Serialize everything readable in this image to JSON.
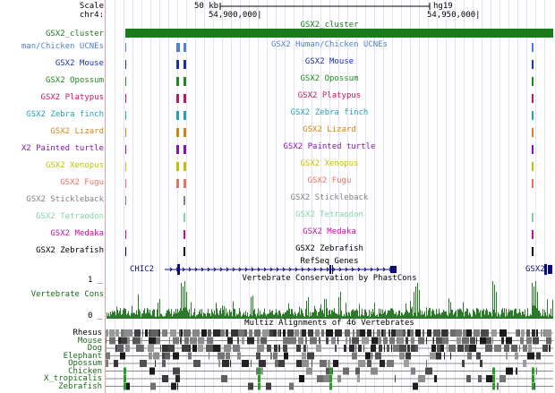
{
  "ruler": {
    "scale_label": "Scale",
    "chrom_label": "chr4:",
    "scale_text": "50 kb",
    "assembly": "hg19",
    "pos_left": "54,900,000|",
    "pos_right": "54,950,000|"
  },
  "tracks": [
    {
      "side": "GSX2_cluster",
      "center": "GSX2_cluster",
      "color": "#1b7b1b"
    },
    {
      "side": "man/Chicken UCNEs",
      "center": "GSX2 Human/Chicken UCNEs",
      "color": "#4f7fd6"
    },
    {
      "side": "GSX2 Mouse",
      "center": "GSX2 Mouse",
      "color": "#1a2fb0"
    },
    {
      "side": "GSX2 Opossum",
      "center": "GSX2 Opossum",
      "color": "#1d8a1d"
    },
    {
      "side": "GSX2 Platypus",
      "center": "GSX2 Platypus",
      "color": "#c01860"
    },
    {
      "side": "GSX2 Zebra finch",
      "center": "GSX2 Zebra finch",
      "color": "#1ea4b4"
    },
    {
      "side": "GSX2 Lizard",
      "center": "GSX2 Lizard",
      "color": "#d48410"
    },
    {
      "side": "X2 Painted turtle",
      "center": "GSX2 Painted turtle",
      "color": "#8a10c4"
    },
    {
      "side": "GSX2 Xenopus",
      "center": "GSX2 Xenopus",
      "color": "#c4c000"
    },
    {
      "side": "GSX2 Fugu",
      "center": "GSX2 Fugu",
      "color": "#ee7060"
    },
    {
      "side": "GSX2 Stickleback",
      "center": "GSX2 Stickleback",
      "color": "#808080"
    },
    {
      "side": "GSX2 Tetraodon",
      "center": "GSX2 Tetraodon",
      "color": "#80d4a4"
    },
    {
      "side": "GSX2 Medaka",
      "center": "GSX2 Medaka",
      "color": "#c010a0"
    },
    {
      "side": "GSX2 Zebrafish",
      "center": "GSX2 Zebrafish",
      "color": "#000000"
    }
  ],
  "refseq": {
    "title": "RefSeq Genes",
    "gene_left": "CHIC2",
    "gene_right": "GSX2",
    "color": "#0c0c78"
  },
  "conservation": {
    "side_label": "Vertebrate Cons",
    "title": "Vertebrate Conservation by PhastCons",
    "tick_top": "1 _",
    "tick_bottom": "0 _",
    "color": "#2a7a2a"
  },
  "multiz": {
    "title": "Multiz Alignments of 46 Vertebrates",
    "species": [
      "Rhesus",
      "Mouse",
      "Dog",
      "Elephant",
      "Opossum",
      "Chicken",
      "X_tropicalis",
      "Zebrafish"
    ],
    "color": "#1a6a1a"
  }
}
